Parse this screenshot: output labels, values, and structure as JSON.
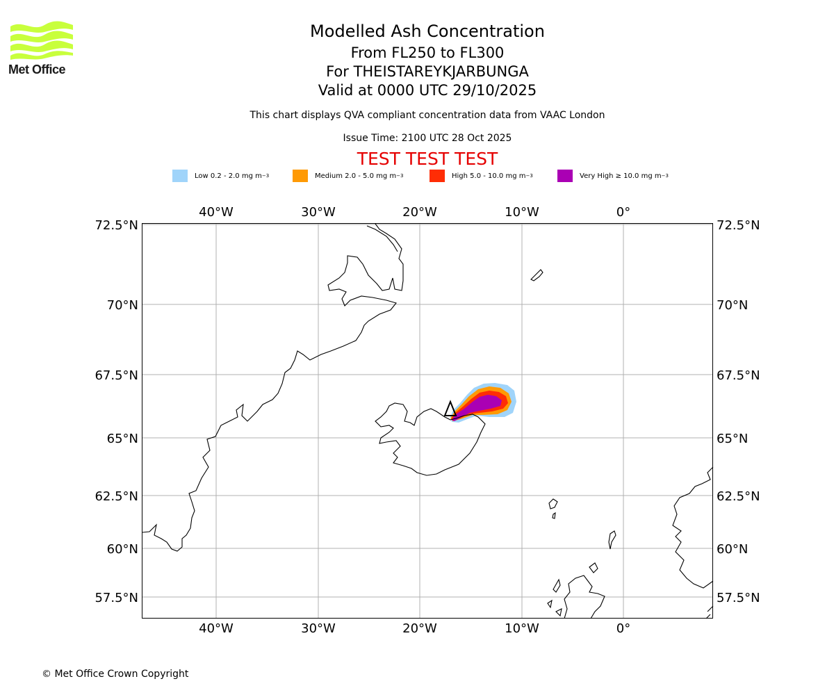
{
  "logo": {
    "text": "Met Office",
    "color": "#c8ff3c"
  },
  "header": {
    "title": "Modelled Ash Concentration",
    "level": "From FL250 to FL300",
    "volcano": "For THEISTAREYKJARBUNGA",
    "valid": "Valid at 0000 UTC 29/10/2025",
    "description": "This chart displays QVA compliant concentration data from VAAC London",
    "issue_time": "Issue Time: 2100 UTC 28 Oct 2025",
    "test_banner": "TEST TEST TEST"
  },
  "legend": [
    {
      "label": "Low 0.2 - 2.0 mg m",
      "exp": "−3",
      "color": "#a0d4fa"
    },
    {
      "label": "Medium 2.0 - 5.0 mg m",
      "exp": "−3",
      "color": "#ff9a05"
    },
    {
      "label": "High 5.0 - 10.0 mg m",
      "exp": "−3",
      "color": "#ff2d05"
    },
    {
      "label": "Very High  ≥  10.0 mg m",
      "exp": "−3",
      "color": "#aa00b4"
    }
  ],
  "map": {
    "lon_range": [
      -47.3,
      8.8
    ],
    "lat_range": [
      56.6,
      72.55
    ],
    "lon_ticks": [
      {
        "value": -40,
        "label": "40°W"
      },
      {
        "value": -30,
        "label": "30°W"
      },
      {
        "value": -20,
        "label": "20°W"
      },
      {
        "value": -10,
        "label": "10°W"
      },
      {
        "value": 0,
        "label": "0°"
      }
    ],
    "lat_ticks": [
      {
        "value": 72.5,
        "label": "72.5°N"
      },
      {
        "value": 70,
        "label": "70°N"
      },
      {
        "value": 67.5,
        "label": "67.5°N"
      },
      {
        "value": 65,
        "label": "65°N"
      },
      {
        "value": 62.5,
        "label": "62.5°N"
      },
      {
        "value": 60,
        "label": "60°N"
      },
      {
        "value": 57.5,
        "label": "57.5°N"
      }
    ],
    "grid_color": "#b0b0b0",
    "volcano_marker": "triangle"
  },
  "footer": {
    "copyright": "© Met Office Crown Copyright"
  }
}
